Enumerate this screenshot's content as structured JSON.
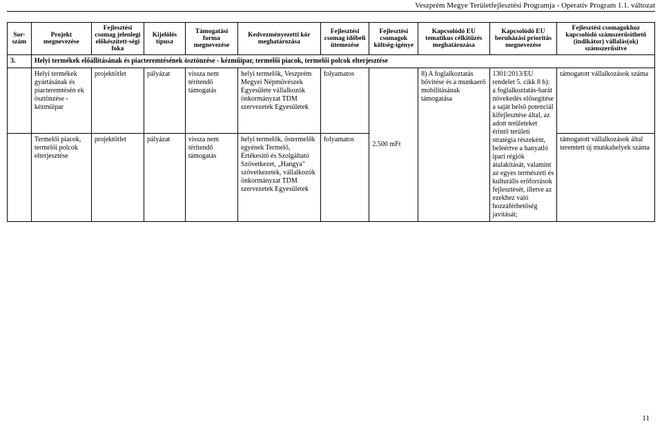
{
  "header": {
    "title": "Veszprém Megye Területfejlesztési Programja - Operatív Program 1.1. változat"
  },
  "columns": {
    "c0": "Sor-szám",
    "c1": "Projekt megnevezése",
    "c2": "Fejlesztési csomag jelenlegi előkészített-ségi foka",
    "c3": "Kijelölés típusa",
    "c4": "Támogatási forma megnevezése",
    "c5": "Kedvezményezetti kör meghatározása",
    "c6": "Fejlesztési csomag időbeli ütemezése",
    "c7": "Fejlesztési csomagok költség-igénye",
    "c8": "Kapcsolódó EU tematikus célkitűzés meghatározása",
    "c9": "Kapcsolódó EU beruházási prioritás megnevezése",
    "c10": "Fejlesztési csomagokhoz kapcsolódó számszerűsíthető (indikátor) vállalás(ok) számszerűsítve"
  },
  "section": {
    "num": "3.",
    "title": "Helyi termékek előállításának és piacteremtésének ösztönzése - kézműipar, termelői piacok, termelői polcok elterjesztése"
  },
  "rows": [
    {
      "c0": "",
      "c1": "Helyi termékek gyártásának és piacteremtésén ek ösztönzése - kézműipar",
      "c2": "projektötlet",
      "c3": "pályázat",
      "c4": "vissza nem térítendő támogatás",
      "c5": "helyi termelők, Veszprém Megyei Népművészek Egyesülete vállalkozók önkormányzat TDM szervezetek Egyesületek",
      "c6": "folyamatos",
      "c10": "támogatott vállalkozások száma"
    },
    {
      "c0": "",
      "c1": "Termelői piacok, termelői polcok elterjesztése",
      "c2": "projektötlet",
      "c3": "pályázat",
      "c4": "vissza nem térítendő támogatás",
      "c5": "helyi termelők, őstermelők egyének Termelő, Értékesítő és Szolgáltató Szövetkezet, „Hangya\" szövetkezetek, vállalkozók önkormányzat TDM szervezetek Egyesületek",
      "c6": "folyamatos",
      "c10": "támogatott vállalkozások által teremtett új munkahelyek száma"
    }
  ],
  "merged": {
    "c7": "2.500 mFt",
    "c8": "8) A foglalkoztatás bővítése és a munkaerő mobilitásának támogatása",
    "c9": "1301/2013/EU rendelet 5. cikk 8 b): a foglalkoztatás-barát növekedés elősegítése a saját belső potenciál kifejlesztése által, az adott területeket érintő területi stratégia részeként, beleértve a hanyatló ipari régiók átalakítását, valamint az egyes természeti és kulturális erőforrások fejlesztését, illetve az ezekhez való hozzáférhetőség javítását;"
  },
  "page": "11"
}
